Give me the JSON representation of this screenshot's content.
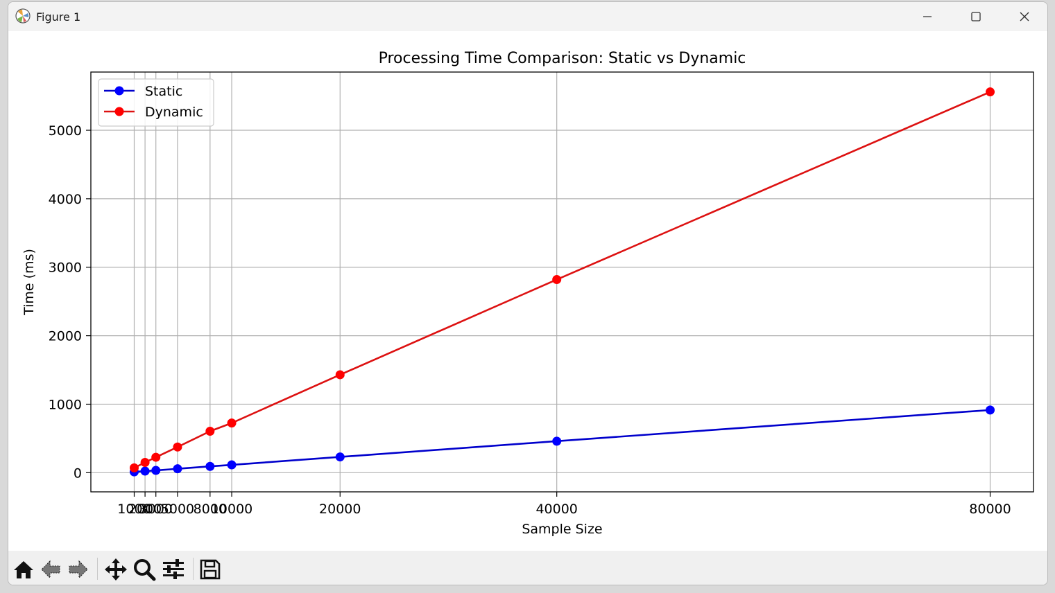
{
  "window": {
    "title": "Figure 1",
    "controls": {
      "minimize": "minimize",
      "maximize": "maximize",
      "close": "close"
    }
  },
  "toolbar": {
    "buttons": [
      {
        "name": "home-icon",
        "label": "Home"
      },
      {
        "name": "back-icon",
        "label": "Back"
      },
      {
        "name": "forward-icon",
        "label": "Forward"
      },
      {
        "name": "pan-icon",
        "label": "Pan"
      },
      {
        "name": "zoom-icon",
        "label": "Zoom"
      },
      {
        "name": "configure-subplots-icon",
        "label": "Subplots"
      },
      {
        "name": "save-icon",
        "label": "Save"
      }
    ]
  },
  "chart_data": {
    "type": "line",
    "title": "Processing Time Comparison: Static vs Dynamic",
    "xlabel": "Sample Size",
    "ylabel": "Time (ms)",
    "x": [
      1000,
      2000,
      3000,
      5000,
      8000,
      10000,
      20000,
      40000,
      80000
    ],
    "x_ticks": [
      1000,
      2000,
      3000,
      5000,
      8000,
      10000,
      20000,
      40000,
      80000
    ],
    "y_ticks": [
      0,
      1000,
      2000,
      3000,
      4000,
      5000
    ],
    "xlim": [
      -3000,
      84000
    ],
    "ylim": [
      -280,
      5850
    ],
    "grid": true,
    "legend_position": "top-left",
    "series": [
      {
        "name": "Static",
        "color": "#0000ff",
        "line_color": "#0000cc",
        "values": [
          12,
          23,
          33,
          57,
          92,
          114,
          230,
          460,
          915
        ]
      },
      {
        "name": "Dynamic",
        "color": "#ff0000",
        "line_color": "#dd1111",
        "values": [
          70,
          150,
          225,
          375,
          605,
          725,
          1430,
          2820,
          5560
        ]
      }
    ]
  }
}
